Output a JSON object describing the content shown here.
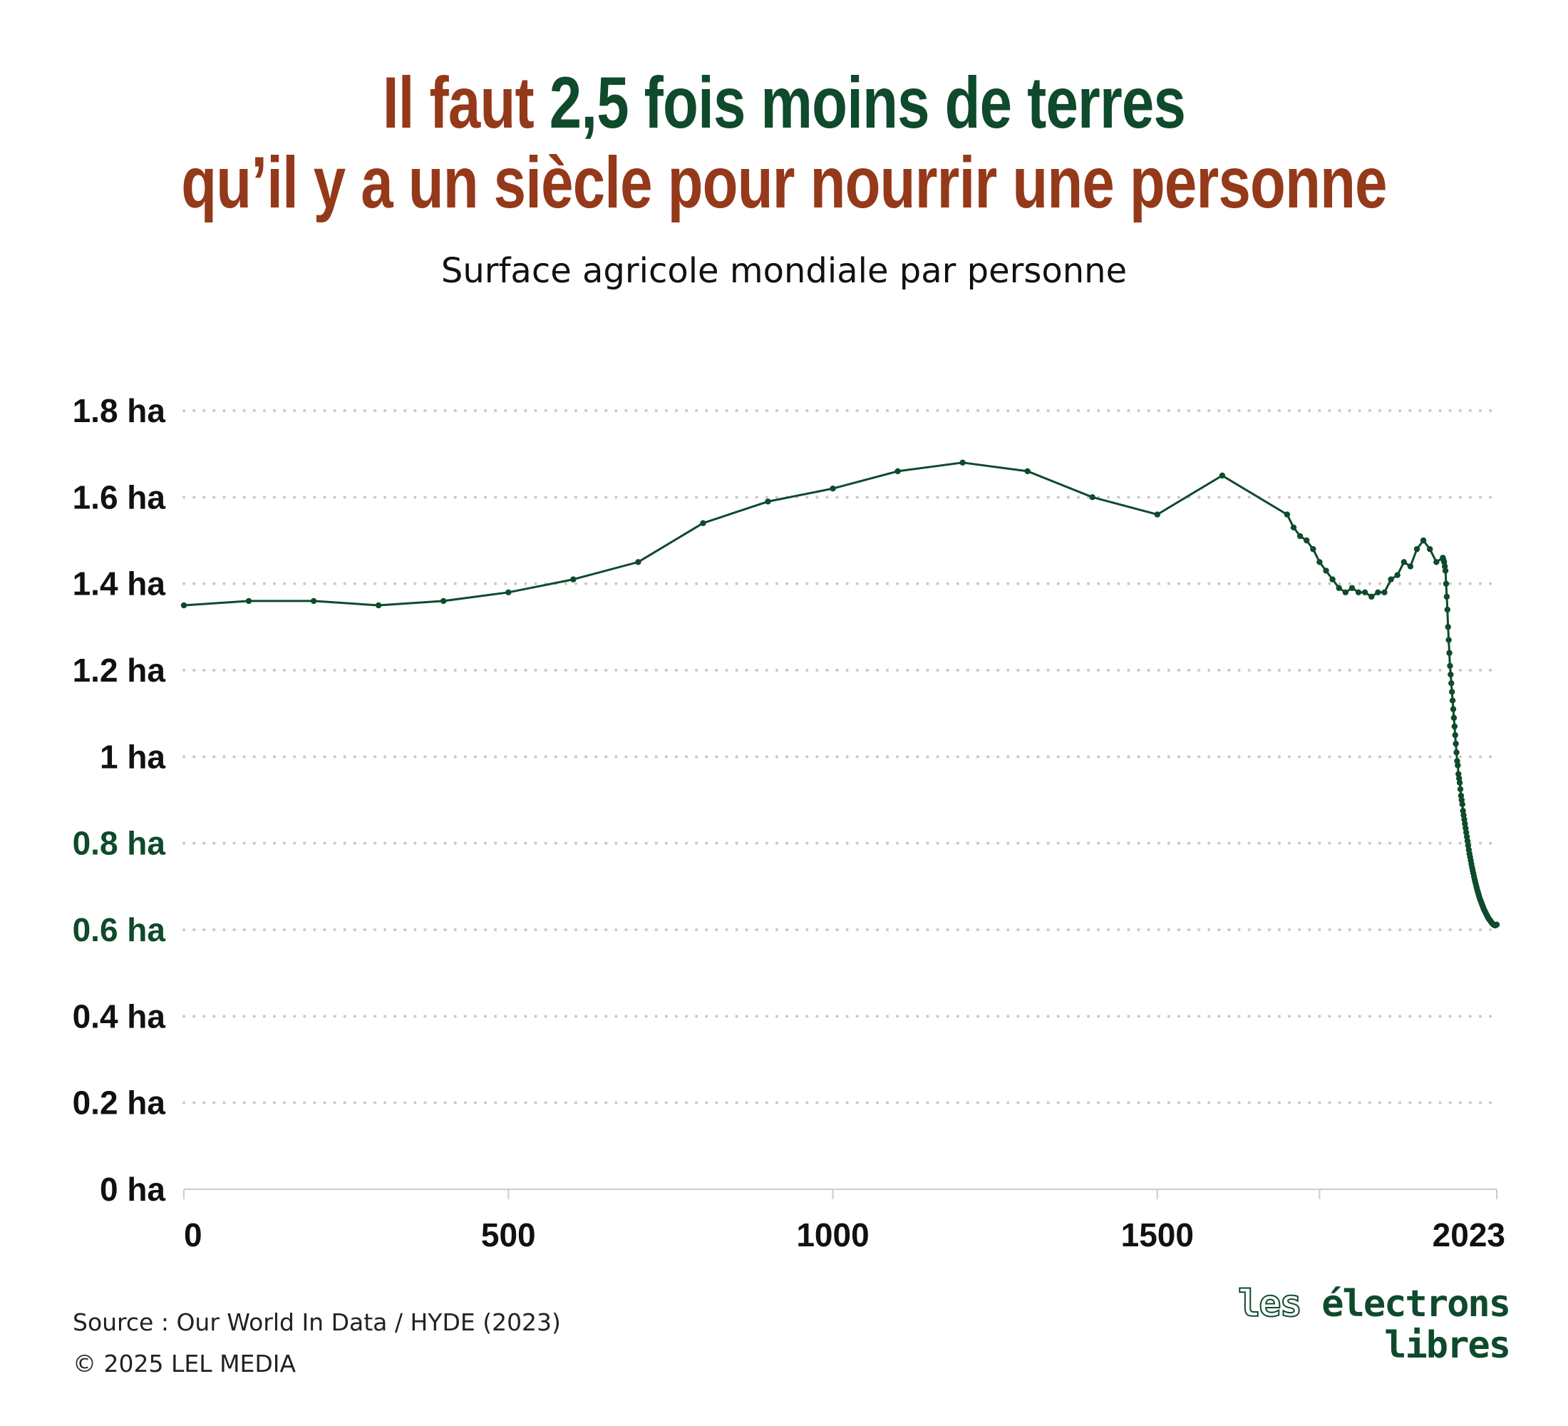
{
  "title": {
    "line1_part1": "Il faut ",
    "line1_part2": "2,5 fois moins de terres",
    "line2": "qu’il y a un siècle pour nourrir une personne"
  },
  "subtitle": "Surface agricole mondiale par personne",
  "footer": {
    "source": "Source : Our World In Data / HYDE (2023)",
    "copyright": "© 2025 LEL MEDIA"
  },
  "logo": {
    "line1_a": "les ",
    "line1_b": "électrons",
    "line2": "libres"
  },
  "colors": {
    "line": "#0e4a2b",
    "rust": "#94391a",
    "green": "#0e4a2b",
    "grid": "#c8c8c8",
    "axis": "#cccccc"
  },
  "chart_data": {
    "type": "line",
    "title": "Surface agricole mondiale par personne",
    "xlabel": "",
    "ylabel": "",
    "xlim": [
      0,
      2023
    ],
    "ylim": [
      0,
      1.8
    ],
    "grid": "dotted horizontal",
    "y_ticks": [
      {
        "value": 0,
        "label": "0 ha"
      },
      {
        "value": 0.2,
        "label": "0.2 ha"
      },
      {
        "value": 0.4,
        "label": "0.4 ha"
      },
      {
        "value": 0.6,
        "label": "0.6 ha",
        "highlight": true
      },
      {
        "value": 0.8,
        "label": "0.8 ha",
        "highlight": true
      },
      {
        "value": 1.0,
        "label": "1 ha"
      },
      {
        "value": 1.2,
        "label": "1.2 ha"
      },
      {
        "value": 1.4,
        "label": "1.4 ha"
      },
      {
        "value": 1.6,
        "label": "1.6 ha"
      },
      {
        "value": 1.8,
        "label": "1.8 ha"
      }
    ],
    "x_ticks": [
      {
        "value": 0,
        "label": "0"
      },
      {
        "value": 500,
        "label": "500"
      },
      {
        "value": 1000,
        "label": "1000"
      },
      {
        "value": 1500,
        "label": "1500"
      },
      {
        "value": 1750,
        "label": ""
      },
      {
        "value": 2023,
        "label": "2023"
      }
    ],
    "series": [
      {
        "x": [
          0,
          100,
          200,
          300,
          400,
          500,
          600,
          700,
          800,
          900,
          1000,
          1100,
          1200,
          1300,
          1400,
          1500,
          1600,
          1700,
          1710,
          1720,
          1730,
          1740,
          1750,
          1760,
          1770,
          1780,
          1790,
          1800,
          1810,
          1820,
          1830,
          1840,
          1850,
          1860,
          1870,
          1880,
          1890,
          1900,
          1910,
          1920,
          1930,
          1940,
          1941,
          1942,
          1943,
          1944,
          1945,
          1946,
          1947,
          1948,
          1949,
          1950,
          1951,
          1952,
          1953,
          1954,
          1955,
          1956,
          1957,
          1958,
          1959,
          1960,
          1961,
          1962,
          1963,
          1964,
          1965,
          1966,
          1967,
          1968,
          1969,
          1970,
          1971,
          1972,
          1973,
          1974,
          1975,
          1976,
          1977,
          1978,
          1979,
          1980,
          1981,
          1982,
          1983,
          1984,
          1985,
          1986,
          1987,
          1988,
          1989,
          1990,
          1991,
          1992,
          1993,
          1994,
          1995,
          1996,
          1997,
          1998,
          1999,
          2000,
          2001,
          2002,
          2003,
          2004,
          2005,
          2006,
          2007,
          2008,
          2009,
          2010,
          2011,
          2012,
          2013,
          2014,
          2015,
          2016,
          2017,
          2018,
          2019,
          2020,
          2021,
          2022,
          2023
        ],
        "y": [
          1.35,
          1.36,
          1.36,
          1.35,
          1.36,
          1.38,
          1.41,
          1.45,
          1.54,
          1.59,
          1.62,
          1.66,
          1.68,
          1.66,
          1.6,
          1.56,
          1.65,
          1.56,
          1.53,
          1.51,
          1.5,
          1.48,
          1.45,
          1.43,
          1.41,
          1.39,
          1.38,
          1.39,
          1.38,
          1.38,
          1.37,
          1.38,
          1.38,
          1.41,
          1.42,
          1.45,
          1.44,
          1.48,
          1.5,
          1.48,
          1.45,
          1.46,
          1.455,
          1.45,
          1.44,
          1.43,
          1.4,
          1.37,
          1.34,
          1.3,
          1.27,
          1.24,
          1.21,
          1.19,
          1.17,
          1.15,
          1.13,
          1.11,
          1.09,
          1.07,
          1.05,
          1.03,
          1.01,
          0.99,
          0.98,
          0.96,
          0.95,
          0.94,
          0.925,
          0.91,
          0.9,
          0.89,
          0.875,
          0.865,
          0.855,
          0.845,
          0.835,
          0.825,
          0.815,
          0.805,
          0.795,
          0.785,
          0.776,
          0.768,
          0.76,
          0.752,
          0.744,
          0.737,
          0.73,
          0.723,
          0.716,
          0.71,
          0.704,
          0.698,
          0.692,
          0.687,
          0.682,
          0.677,
          0.672,
          0.668,
          0.664,
          0.66,
          0.656,
          0.652,
          0.648,
          0.645,
          0.642,
          0.639,
          0.636,
          0.633,
          0.63,
          0.627,
          0.625,
          0.623,
          0.621,
          0.619,
          0.617,
          0.615,
          0.613,
          0.612,
          0.611,
          0.61,
          0.61,
          0.611,
          0.612
        ]
      }
    ]
  }
}
